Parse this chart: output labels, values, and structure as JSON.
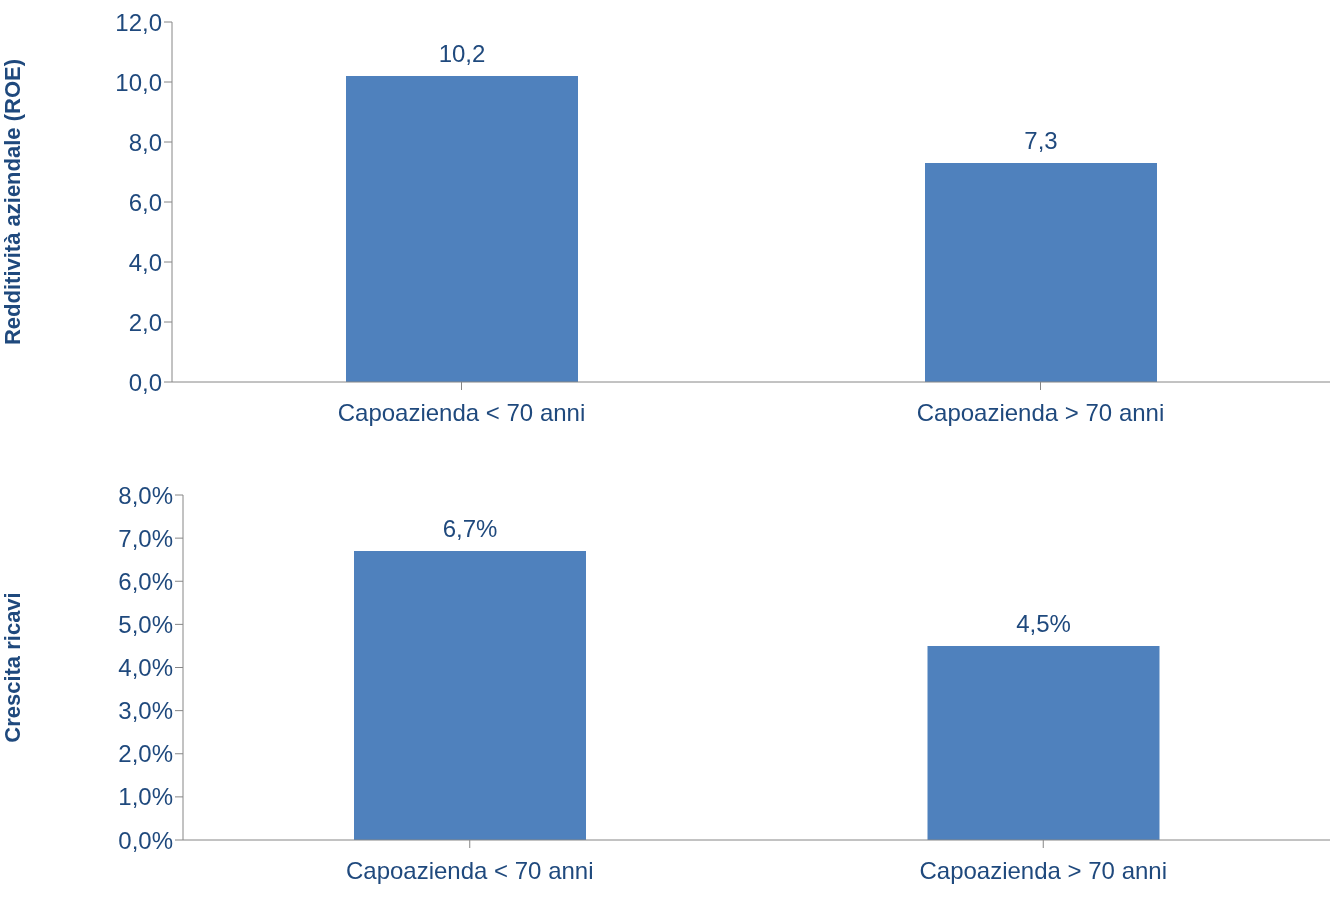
{
  "chart_data": [
    {
      "type": "bar",
      "ylabel": "Redditività aziendale (ROE)",
      "categories": [
        "Capoazienda < 70 anni",
        "Capoazienda > 70 anni"
      ],
      "values": [
        10.2,
        7.3
      ],
      "color": "#4f81bd",
      "value_labels": [
        "10,2",
        "7,3"
      ],
      "ylim": [
        0,
        12
      ],
      "yticks": [
        {
          "value": 0,
          "label": "0,0"
        },
        {
          "value": 2,
          "label": "2,0"
        },
        {
          "value": 4,
          "label": "4,0"
        },
        {
          "value": 6,
          "label": "6,0"
        },
        {
          "value": 8,
          "label": "8,0"
        },
        {
          "value": 10,
          "label": "10,0"
        },
        {
          "value": 12,
          "label": "12,0"
        }
      ],
      "grid": false,
      "legend": false
    },
    {
      "type": "bar",
      "ylabel": "Crescita ricavi",
      "categories": [
        "Capoazienda < 70 anni",
        "Capoazienda > 70 anni"
      ],
      "values": [
        6.7,
        4.5
      ],
      "color": "#4f81bd",
      "value_labels": [
        "6,7%",
        "4,5%"
      ],
      "ylim": [
        0,
        8
      ],
      "yticks": [
        {
          "value": 0,
          "label": "0,0%"
        },
        {
          "value": 1,
          "label": "1,0%"
        },
        {
          "value": 2,
          "label": "2,0%"
        },
        {
          "value": 3,
          "label": "3,0%"
        },
        {
          "value": 4,
          "label": "4,0%"
        },
        {
          "value": 5,
          "label": "5,0%"
        },
        {
          "value": 6,
          "label": "6,0%"
        },
        {
          "value": 7,
          "label": "7,0%"
        },
        {
          "value": 8,
          "label": "8,0%"
        }
      ],
      "grid": false,
      "legend": false
    }
  ]
}
